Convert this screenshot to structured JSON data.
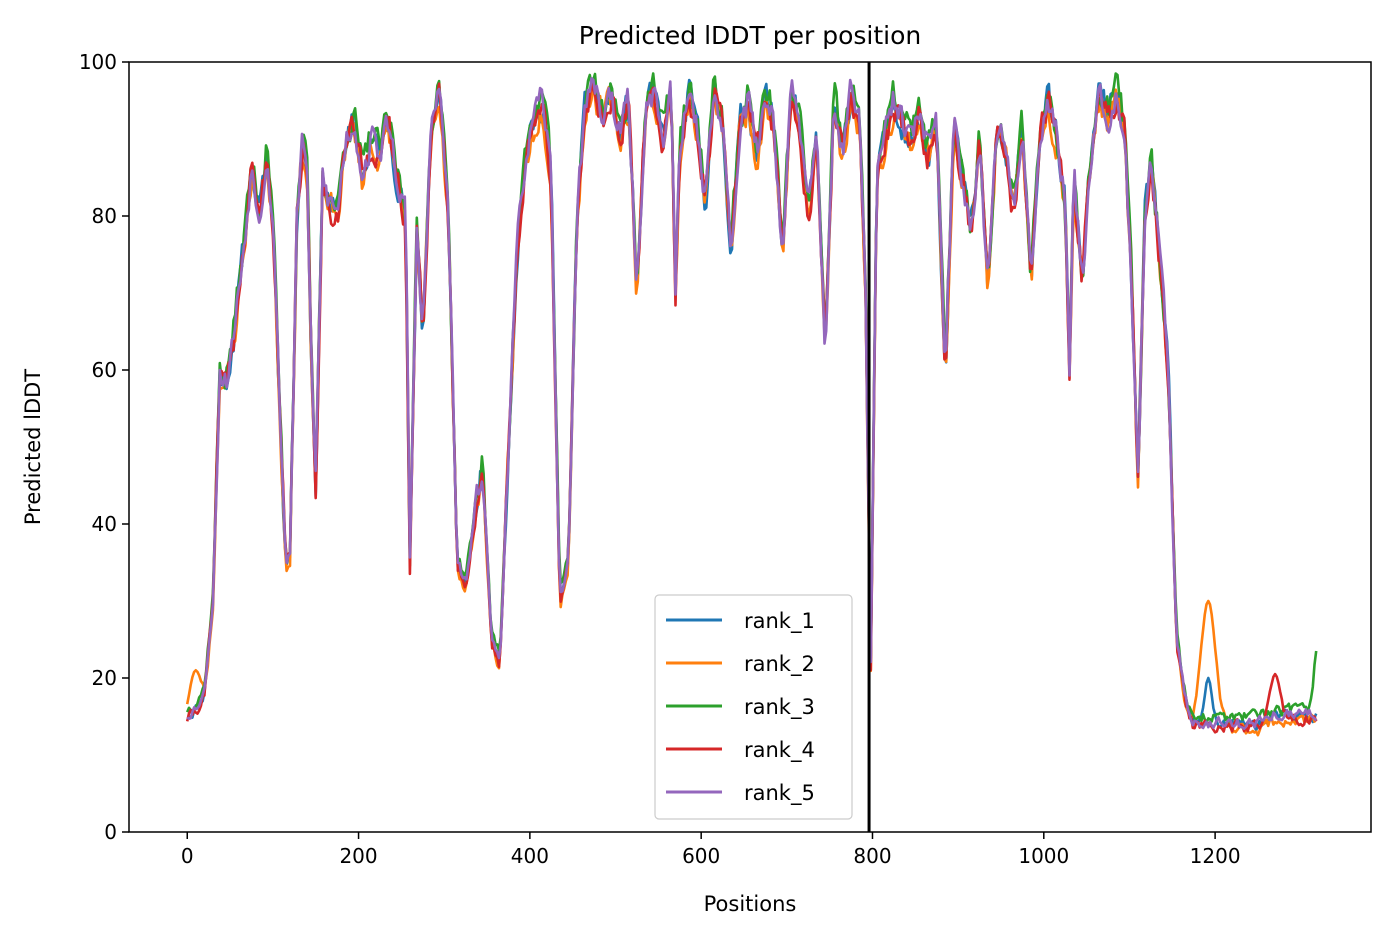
{
  "chart_data": {
    "type": "line",
    "title": "Predicted lDDT per position",
    "xlabel": "Positions",
    "ylabel": "Predicted lDDT",
    "xlim": [
      -68,
      1382
    ],
    "ylim": [
      0,
      100
    ],
    "xticks": [
      0,
      200,
      400,
      600,
      800,
      1000,
      1200
    ],
    "yticks": [
      0,
      20,
      40,
      60,
      80,
      100
    ],
    "grid": false,
    "legend_position": "lower-center",
    "vertical_marker": {
      "x": 796,
      "color": "#000000"
    },
    "base_profile": {
      "x": [
        0,
        10,
        20,
        30,
        38,
        45,
        55,
        65,
        75,
        85,
        92,
        100,
        108,
        115,
        120,
        128,
        135,
        140,
        145,
        150,
        158,
        165,
        175,
        185,
        195,
        205,
        215,
        225,
        235,
        245,
        255,
        260,
        268,
        275,
        285,
        295,
        305,
        315,
        325,
        335,
        345,
        355,
        365,
        375,
        385,
        395,
        405,
        415,
        425,
        435,
        445,
        455,
        465,
        475,
        485,
        495,
        505,
        515,
        525,
        535,
        545,
        555,
        565,
        570,
        575,
        585,
        595,
        605,
        615,
        625,
        635,
        645,
        655,
        665,
        675,
        685,
        695,
        705,
        715,
        725,
        735,
        745,
        755,
        765,
        775,
        785,
        792,
        798,
        805,
        815,
        825,
        835,
        845,
        855,
        865,
        875,
        880,
        885,
        895,
        905,
        915,
        925,
        935,
        945,
        955,
        965,
        975,
        985,
        995,
        1005,
        1015,
        1025,
        1030,
        1035,
        1045,
        1055,
        1065,
        1075,
        1085,
        1095,
        1103,
        1110,
        1118,
        1125,
        1135,
        1145,
        1155,
        1165,
        1175,
        1190,
        1210,
        1230,
        1250,
        1270,
        1290,
        1310,
        1320
      ],
      "y": [
        15,
        16,
        18,
        30,
        60,
        58,
        65,
        75,
        86,
        80,
        88,
        80,
        55,
        35,
        36,
        80,
        90,
        85,
        60,
        45,
        85,
        82,
        80,
        90,
        92,
        85,
        90,
        88,
        92,
        85,
        80,
        35,
        78,
        65,
        92,
        96,
        80,
        35,
        32,
        40,
        48,
        25,
        22,
        50,
        75,
        88,
        92,
        95,
        85,
        30,
        35,
        80,
        95,
        97,
        93,
        96,
        90,
        95,
        70,
        94,
        96,
        90,
        96,
        70,
        88,
        96,
        92,
        82,
        96,
        92,
        75,
        92,
        95,
        88,
        96,
        92,
        75,
        96,
        92,
        80,
        90,
        62,
        95,
        88,
        96,
        92,
        70,
        22,
        85,
        90,
        95,
        92,
        90,
        93,
        88,
        92,
        75,
        60,
        92,
        85,
        78,
        90,
        70,
        92,
        88,
        80,
        92,
        72,
        90,
        95,
        90,
        82,
        60,
        85,
        72,
        88,
        96,
        93,
        96,
        90,
        70,
        45,
        80,
        88,
        75,
        60,
        25,
        17,
        14,
        14,
        14,
        14,
        14,
        15,
        15,
        15,
        15
      ]
    },
    "series": [
      {
        "name": "rank_1",
        "color": "#1f77b4",
        "seed": 11,
        "offset": 0.0
      },
      {
        "name": "rank_2",
        "color": "#ff7f0e",
        "seed": 23,
        "offset": -0.6
      },
      {
        "name": "rank_3",
        "color": "#2ca02c",
        "seed": 37,
        "offset": 0.9
      },
      {
        "name": "rank_4",
        "color": "#d62728",
        "seed": 41,
        "offset": -0.3
      },
      {
        "name": "rank_5",
        "color": "#9467bd",
        "seed": 53,
        "offset": 0.2
      }
    ],
    "features": [
      {
        "series": "rank_2",
        "x_center": 1192,
        "width": 12,
        "peak": 30
      },
      {
        "series": "rank_1",
        "x_center": 1192,
        "width": 6,
        "peak": 20
      },
      {
        "series": "rank_4",
        "x_center": 1270,
        "width": 8,
        "peak": 20.5
      },
      {
        "series": "rank_3",
        "x_center": 1318,
        "width": 4,
        "peak": 23.5
      },
      {
        "series": "rank_2",
        "x_center": 10,
        "width": 10,
        "peak": 21
      }
    ],
    "n_positions": 1320
  }
}
